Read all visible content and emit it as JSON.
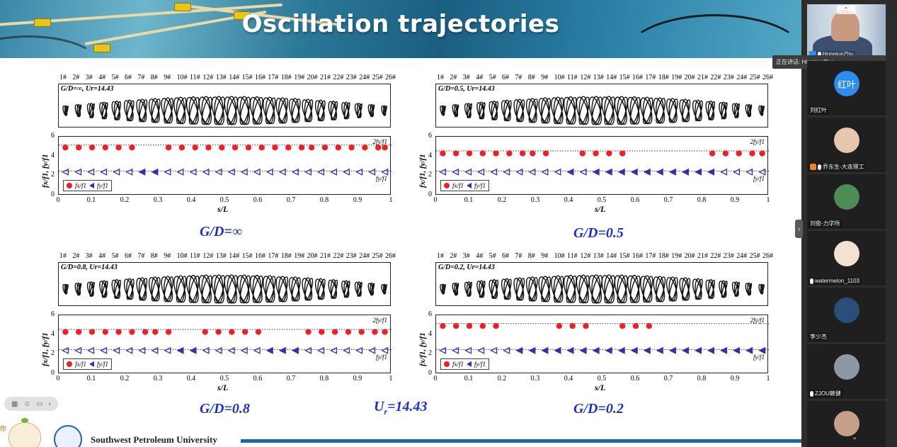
{
  "slide": {
    "title": "Oscillation trajectories",
    "university": "Southwest Petroleum University",
    "corner_text": "你",
    "reduced_velocity_prefix": "U",
    "reduced_velocity_sub": "r",
    "reduced_velocity_value": "=14.43"
  },
  "panels": [
    {
      "key": "inf",
      "traj_label": "G/D=∞, Ur=14.43",
      "caption_prefix": "G/D=",
      "caption_value": "∞",
      "red_positions": [
        0.02,
        0.06,
        0.1,
        0.14,
        0.18,
        0.22,
        0.33,
        0.37,
        0.41,
        0.45,
        0.49,
        0.53,
        0.57,
        0.61,
        0.65,
        0.69,
        0.73,
        0.76,
        0.8,
        0.84,
        0.88,
        0.92,
        0.96,
        0.98
      ],
      "red_level": 4.9,
      "blue_purple_positions": [
        0.24,
        0.28
      ]
    },
    {
      "key": "0.5",
      "traj_label": "G/D=0.5, Ur=14.43",
      "caption_prefix": "G/D=",
      "caption_value": "0.5",
      "red_positions": [
        0.02,
        0.06,
        0.1,
        0.14,
        0.18,
        0.22,
        0.26,
        0.29,
        0.33,
        0.44,
        0.48,
        0.52,
        0.56,
        0.83,
        0.87,
        0.91,
        0.95,
        0.98
      ],
      "red_level": 4.3,
      "blue_purple_positions": [
        0.41,
        0.48,
        0.52,
        0.56,
        0.6,
        0.64,
        0.68,
        0.72,
        0.76,
        0.8,
        0.84
      ]
    },
    {
      "key": "0.8",
      "traj_label": "G/D=0.8, Ur=14.43",
      "caption_prefix": "G/D=",
      "caption_value": "0.8",
      "red_positions": [
        0.02,
        0.06,
        0.1,
        0.14,
        0.18,
        0.22,
        0.26,
        0.29,
        0.33,
        0.44,
        0.48,
        0.52,
        0.56,
        0.6,
        0.75,
        0.79,
        0.83,
        0.87,
        0.91,
        0.95,
        0.98
      ],
      "red_level": 4.3,
      "blue_purple_positions": [
        0.37,
        0.41,
        0.64,
        0.68,
        0.71
      ]
    },
    {
      "key": "0.2",
      "traj_label": "G/D=0.2, Ur=14.43",
      "caption_prefix": "G/D=",
      "caption_value": "0.2",
      "red_positions": [
        0.02,
        0.06,
        0.1,
        0.14,
        0.18,
        0.37,
        0.41,
        0.45,
        0.56,
        0.6,
        0.64
      ],
      "red_level": 4.9,
      "blue_purple_positions": [
        0.26,
        0.29,
        0.33,
        0.37,
        0.41,
        0.45,
        0.48,
        0.52,
        0.56,
        0.6,
        0.64,
        0.68,
        0.72,
        0.76,
        0.8,
        0.84,
        0.88,
        0.92,
        0.96,
        0.98
      ]
    }
  ],
  "plot_common": {
    "x_ticks": [
      "0",
      "0.1",
      "0.2",
      "0.3",
      "0.4",
      "0.5",
      "0.6",
      "0.7",
      "0.8",
      "0.9",
      "1"
    ],
    "y_ticks": [
      "6",
      "4",
      "2",
      "0"
    ],
    "xlabel": "s/L",
    "ylabel": "fx/f1, fy/f1",
    "annot_top": "2fy/f1",
    "annot_mid": "fy/f1",
    "legend_red": "fx/f1",
    "legend_blue": "fy/f1",
    "mode_numbers": [
      "1#",
      "2#",
      "3#",
      "4#",
      "5#",
      "6#",
      "7#",
      "8#",
      "9#",
      "10#",
      "11#",
      "12#",
      "13#",
      "14#",
      "15#",
      "16#",
      "17#",
      "18#",
      "19#",
      "20#",
      "21#",
      "22#",
      "23#",
      "24#",
      "25#",
      "26#"
    ],
    "colors": {
      "red": "#ee1f26",
      "blue": "#2433c8",
      "purple": "#6a1b86"
    }
  },
  "sidebar": {
    "speaking_text": "正在讲话: HongjunZhu;",
    "participants": [
      {
        "name": "HongjunZhu",
        "type": "video",
        "cam_label": "⌃"
      },
      {
        "name": "刘红叶",
        "type": "initials",
        "initials": "红叶"
      },
      {
        "name": "乔东生-大连理工",
        "type": "photo"
      },
      {
        "name": "刘俊-力学所",
        "type": "photo"
      },
      {
        "name": "watermelon_1103",
        "type": "photo"
      },
      {
        "name": "李少杰",
        "type": "photo"
      },
      {
        "name": "ZJOU赖健",
        "type": "photo"
      },
      {
        "name": "",
        "type": "photo"
      }
    ],
    "collapse_icon": "›",
    "scroll_icon": "⌄"
  },
  "toolbar": {
    "icons": [
      "grid-icon",
      "emoji-icon",
      "chat-icon",
      "back-icon"
    ]
  }
}
